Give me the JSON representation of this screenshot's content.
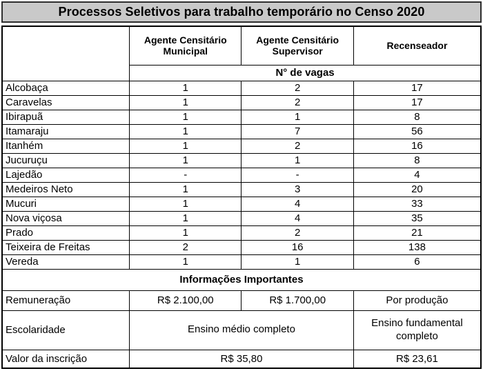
{
  "title": "Processos Seletivos para trabalho temporário no Censo 2020",
  "colors": {
    "title_bar_bg": "#c9c9c9",
    "border": "#000000",
    "text": "#000000",
    "background": "#ffffff"
  },
  "table": {
    "column_headers": [
      "Agente Censitário Municipal",
      "Agente Censitário Supervisor",
      "Recenseador"
    ],
    "vagas_header": "N° de vagas",
    "rows": [
      {
        "name": "Alcobaça",
        "values": [
          "1",
          "2",
          "17"
        ]
      },
      {
        "name": "Caravelas",
        "values": [
          "1",
          "2",
          "17"
        ]
      },
      {
        "name": "Ibirapuã",
        "values": [
          "1",
          "1",
          "8"
        ]
      },
      {
        "name": "Itamaraju",
        "values": [
          "1",
          "7",
          "56"
        ]
      },
      {
        "name": "Itanhém",
        "values": [
          "1",
          "2",
          "16"
        ]
      },
      {
        "name": "Jucuruçu",
        "values": [
          "1",
          "1",
          "8"
        ]
      },
      {
        "name": "Lajedão",
        "values": [
          "-",
          "-",
          "4"
        ]
      },
      {
        "name": "Medeiros Neto",
        "values": [
          "1",
          "3",
          "20"
        ]
      },
      {
        "name": "Mucuri",
        "values": [
          "1",
          "4",
          "33"
        ]
      },
      {
        "name": "Nova viçosa",
        "values": [
          "1",
          "4",
          "35"
        ]
      },
      {
        "name": "Prado",
        "values": [
          "1",
          "2",
          "21"
        ]
      },
      {
        "name": "Teixeira de Freitas",
        "values": [
          "2",
          "16",
          "138"
        ]
      },
      {
        "name": "Vereda",
        "values": [
          "1",
          "1",
          "6"
        ]
      }
    ],
    "info_header": "Informações Importantes",
    "info": {
      "remuneracao": {
        "label": "Remuneração",
        "values": [
          "R$ 2.100,00",
          "R$ 1.700,00",
          "Por produção"
        ]
      },
      "escolaridade": {
        "label": "Escolaridade",
        "values": [
          "Ensino médio completo",
          "Ensino fundamental completo"
        ]
      },
      "inscricao": {
        "label": "Valor da inscrição",
        "values": [
          "R$ 35,80",
          "R$ 23,61"
        ]
      }
    }
  }
}
